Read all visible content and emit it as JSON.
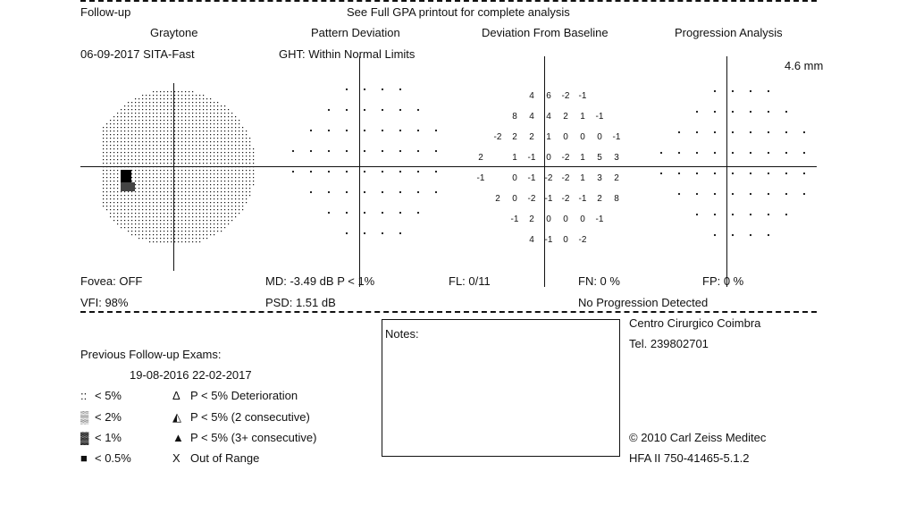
{
  "header": {
    "follow_up": "Follow-up",
    "gpa_note": "See Full GPA printout for complete analysis",
    "date_strategy": "06-09-2017  SITA-Fast",
    "ght": "GHT: Within Normal Limits",
    "pupil": "4.6 mm"
  },
  "panels": {
    "graytone": "Graytone",
    "pattern_deviation": "Pattern Deviation",
    "deviation_from_baseline": "Deviation From Baseline",
    "progression_analysis": "Progression Analysis"
  },
  "stats": {
    "fovea": "Fovea: OFF",
    "md": "MD:  -3.49 dB  P < 1%",
    "fl": "FL: 0/11",
    "fn": "FN:  0 %",
    "fp": "FP:  0 %",
    "vfi": "VFI:  98%",
    "psd": "PSD:  1.51 dB",
    "progression": "No Progression Detected"
  },
  "deviation_rows": [
    [
      "4",
      "6",
      "-2",
      "-1"
    ],
    [
      "8",
      "4",
      "4",
      "2",
      "1",
      "-1"
    ],
    [
      "-2",
      "2",
      "2",
      "1",
      "0",
      "0",
      "0",
      "-1"
    ],
    [
      "2",
      "",
      "1",
      "-1",
      "0",
      "-2",
      "1",
      "5",
      "3"
    ],
    [
      "-1",
      "",
      "0",
      "-1",
      "-2",
      "-2",
      "1",
      "3",
      "2"
    ],
    [
      "2",
      "0",
      "-2",
      "-1",
      "-2",
      "-1",
      "2",
      "8"
    ],
    [
      "-1",
      "2",
      "0",
      "0",
      "0",
      "-1"
    ],
    [
      "4",
      "-1",
      "0",
      "-2"
    ]
  ],
  "footer": {
    "previous_exams": "Previous Follow-up Exams:",
    "exam_dates": "19-08-2016     22-02-2017",
    "notes_label": "Notes:",
    "clinic": "Centro Cirurgico Coimbra",
    "tel": "Tel. 239802701",
    "copyright": "© 2010 Carl Zeiss Meditec",
    "device": "HFA II 750-41465-5.1.2"
  },
  "legend": [
    {
      "symbol": "::",
      "label": "< 5%"
    },
    {
      "symbol": "▒",
      "label": "< 2%"
    },
    {
      "symbol": "▓",
      "label": "< 1%"
    },
    {
      "symbol": "■",
      "label": "< 0.5%"
    }
  ],
  "progression_legend": [
    {
      "symbol": "Δ",
      "label": "P < 5% Deterioration"
    },
    {
      "symbol": "◭",
      "label": "P < 5% (2 consecutive)"
    },
    {
      "symbol": "▲",
      "label": "P < 5% (3+ consecutive)"
    },
    {
      "symbol": "X",
      "label": "Out of Range"
    }
  ]
}
